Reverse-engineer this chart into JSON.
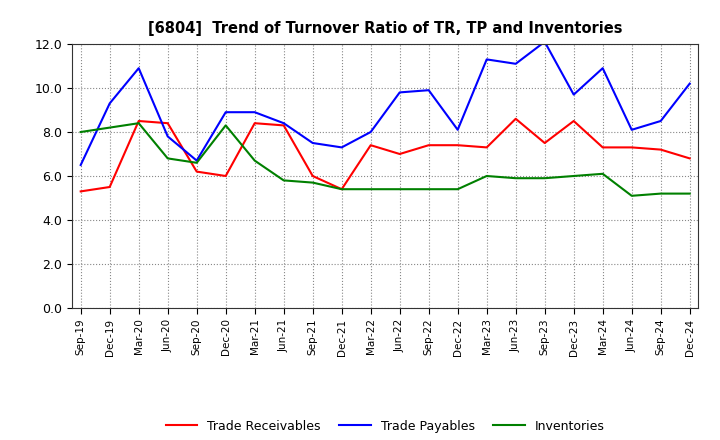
{
  "title": "[6804]  Trend of Turnover Ratio of TR, TP and Inventories",
  "x_labels": [
    "Sep-19",
    "Dec-19",
    "Mar-20",
    "Jun-20",
    "Sep-20",
    "Dec-20",
    "Mar-21",
    "Jun-21",
    "Sep-21",
    "Dec-21",
    "Mar-22",
    "Jun-22",
    "Sep-22",
    "Dec-22",
    "Mar-23",
    "Jun-23",
    "Sep-23",
    "Dec-23",
    "Mar-24",
    "Jun-24",
    "Sep-24",
    "Dec-24"
  ],
  "trade_receivables": [
    5.3,
    5.5,
    8.5,
    8.4,
    6.2,
    6.0,
    8.4,
    8.3,
    6.0,
    5.4,
    7.4,
    7.0,
    7.4,
    7.4,
    7.3,
    8.6,
    7.5,
    8.5,
    7.3,
    7.3,
    7.2,
    6.8
  ],
  "trade_payables": [
    6.5,
    9.3,
    10.9,
    7.8,
    6.7,
    8.9,
    8.9,
    8.4,
    7.5,
    7.3,
    8.0,
    9.8,
    9.9,
    8.1,
    11.3,
    11.1,
    12.1,
    9.7,
    10.9,
    8.1,
    8.5,
    10.2
  ],
  "inventories": [
    8.0,
    8.2,
    8.4,
    6.8,
    6.6,
    8.3,
    6.7,
    5.8,
    5.7,
    5.4,
    5.4,
    5.4,
    5.4,
    5.4,
    6.0,
    5.9,
    5.9,
    6.0,
    6.1,
    5.1,
    5.2,
    5.2
  ],
  "ylim": [
    0.0,
    12.0
  ],
  "yticks": [
    0.0,
    2.0,
    4.0,
    6.0,
    8.0,
    10.0,
    12.0
  ],
  "colors": {
    "trade_receivables": "#ff0000",
    "trade_payables": "#0000ff",
    "inventories": "#008000"
  },
  "legend_labels": [
    "Trade Receivables",
    "Trade Payables",
    "Inventories"
  ],
  "background_color": "#ffffff",
  "grid_color": "#888888"
}
